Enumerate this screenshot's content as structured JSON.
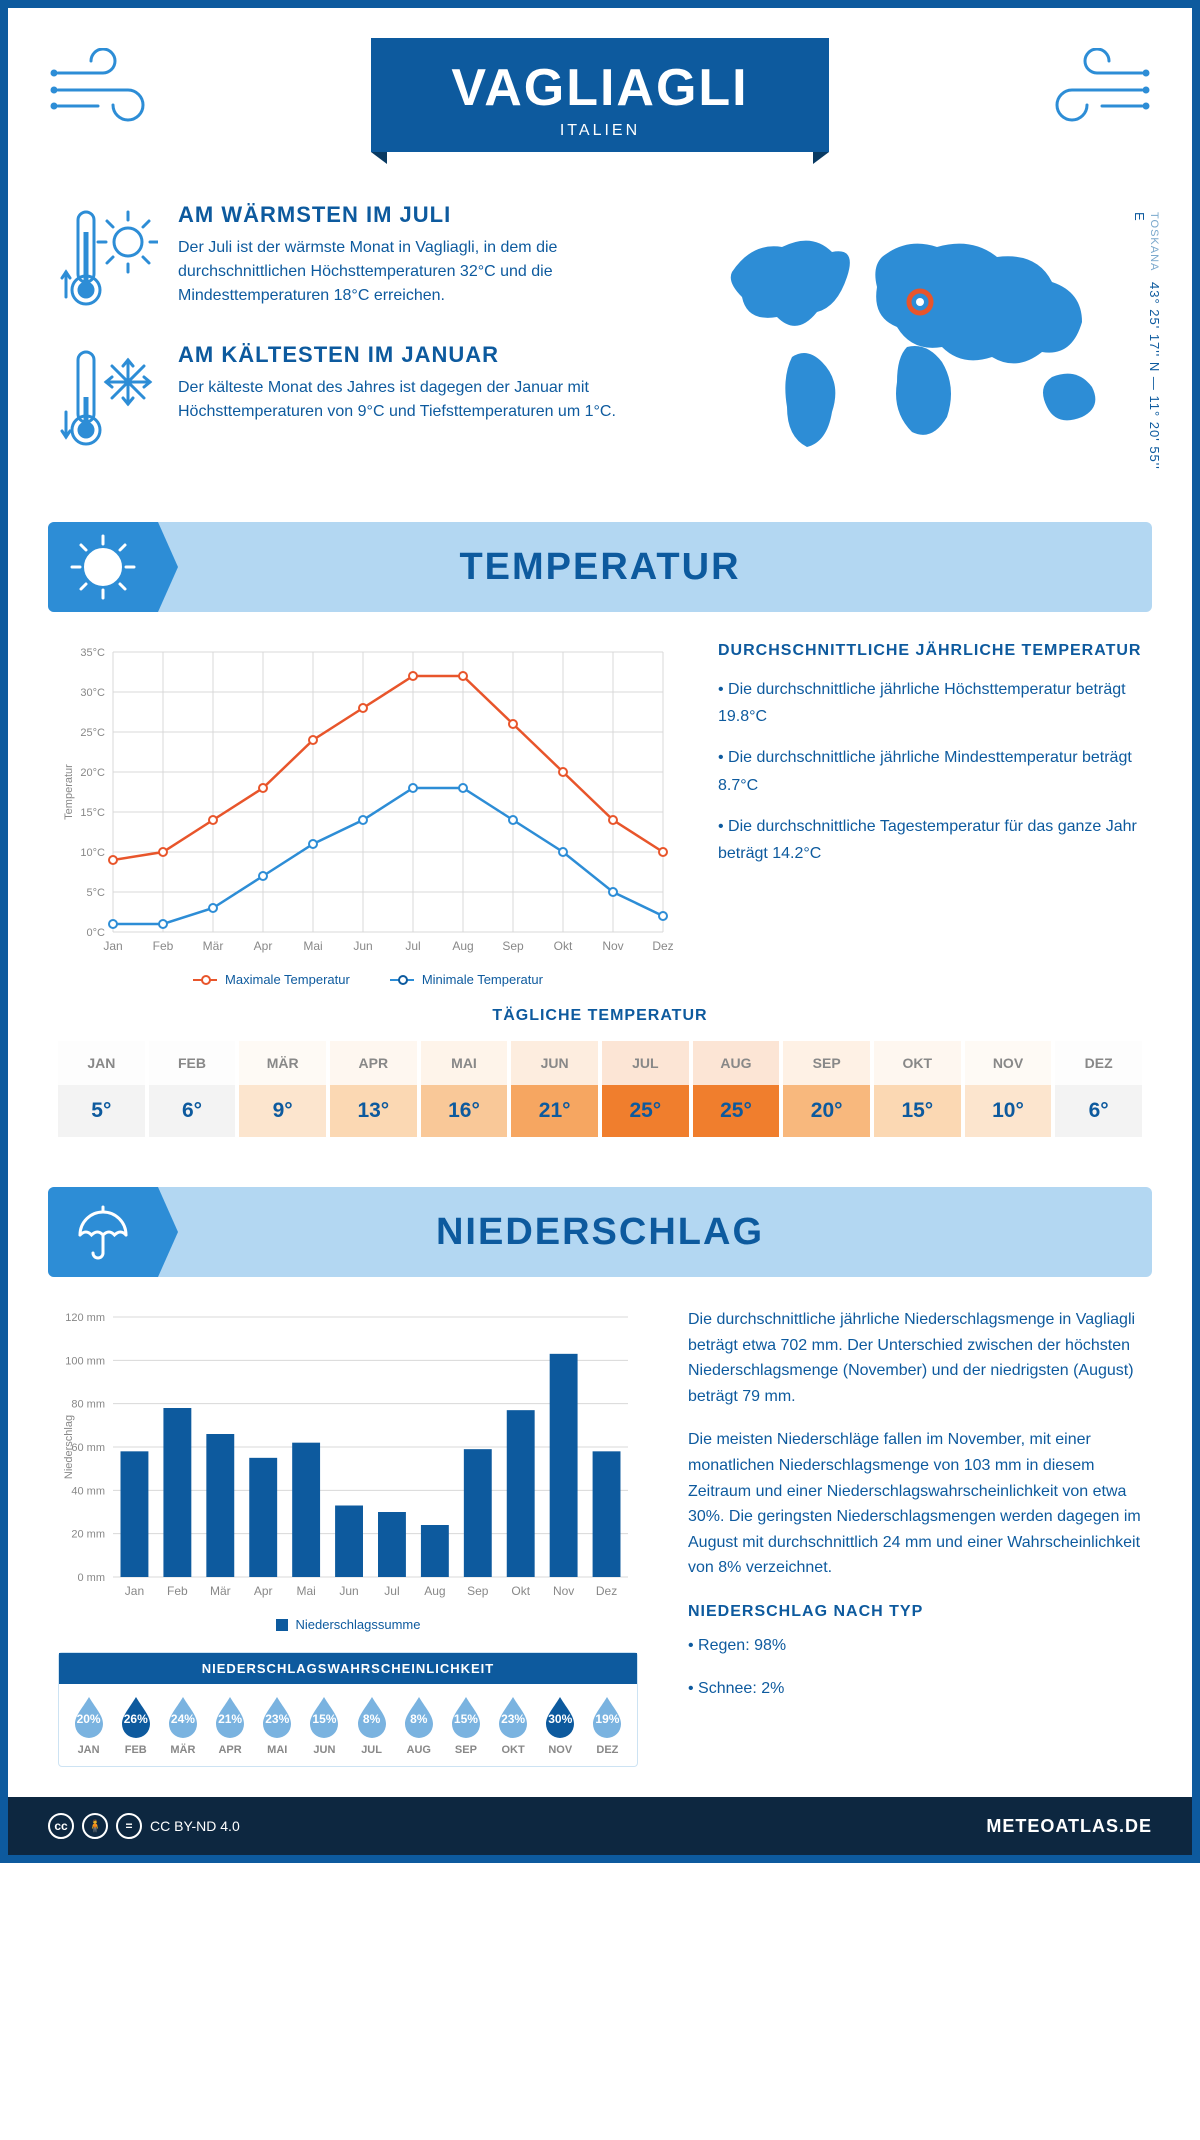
{
  "header": {
    "title": "VAGLIAGLI",
    "country": "ITALIEN"
  },
  "location": {
    "region": "TOSKANA",
    "coords": "43° 25' 17'' N — 11° 20' 55'' E"
  },
  "facts": {
    "warm": {
      "title": "AM WÄRMSTEN IM JULI",
      "text": "Der Juli ist der wärmste Monat in Vagliagli, in dem die durchschnittlichen Höchsttemperaturen 32°C und die Mindesttemperaturen 18°C erreichen."
    },
    "cold": {
      "title": "AM KÄLTESTEN IM JANUAR",
      "text": "Der kälteste Monat des Jahres ist dagegen der Januar mit Höchsttemperaturen von 9°C und Tiefsttemperaturen um 1°C."
    }
  },
  "sections": {
    "temp": "TEMPERATUR",
    "precip": "NIEDERSCHLAG"
  },
  "temp_chart": {
    "months": [
      "Jan",
      "Feb",
      "Mär",
      "Apr",
      "Mai",
      "Jun",
      "Jul",
      "Aug",
      "Sep",
      "Okt",
      "Nov",
      "Dez"
    ],
    "max": [
      9,
      10,
      14,
      18,
      24,
      28,
      32,
      32,
      26,
      20,
      14,
      10
    ],
    "min": [
      1,
      1,
      3,
      7,
      11,
      14,
      18,
      18,
      14,
      10,
      5,
      2
    ],
    "ylabel": "Temperatur",
    "ylim": [
      0,
      35
    ],
    "ytick_step": 5,
    "max_color": "#e8552b",
    "min_color": "#2d8dd6",
    "grid_color": "#d8d8d8",
    "legend_max": "Maximale Temperatur",
    "legend_min": "Minimale Temperatur"
  },
  "temp_summary": {
    "title": "DURCHSCHNITTLICHE JÄHRLICHE TEMPERATUR",
    "p1": "• Die durchschnittliche jährliche Höchsttemperatur beträgt 19.8°C",
    "p2": "• Die durchschnittliche jährliche Mindesttemperatur beträgt 8.7°C",
    "p3": "• Die durchschnittliche Tagestemperatur für das ganze Jahr beträgt 14.2°C"
  },
  "daily_temp": {
    "title": "TÄGLICHE TEMPERATUR",
    "months": [
      "JAN",
      "FEB",
      "MÄR",
      "APR",
      "MAI",
      "JUN",
      "JUL",
      "AUG",
      "SEP",
      "OKT",
      "NOV",
      "DEZ"
    ],
    "values": [
      "5°",
      "6°",
      "9°",
      "13°",
      "16°",
      "21°",
      "25°",
      "25°",
      "20°",
      "15°",
      "10°",
      "6°"
    ],
    "colors": [
      "#f3f3f3",
      "#f3f3f3",
      "#fce5ce",
      "#fbd8b3",
      "#f9c898",
      "#f6a661",
      "#f07e2d",
      "#f07e2d",
      "#f8b87d",
      "#fbd8b3",
      "#fce5ce",
      "#f3f3f3"
    ]
  },
  "precip_chart": {
    "months": [
      "Jan",
      "Feb",
      "Mär",
      "Apr",
      "Mai",
      "Jun",
      "Jul",
      "Aug",
      "Sep",
      "Okt",
      "Nov",
      "Dez"
    ],
    "values": [
      58,
      78,
      66,
      55,
      62,
      33,
      30,
      24,
      59,
      77,
      103,
      58
    ],
    "ylabel": "Niederschlag",
    "ylim": [
      0,
      120
    ],
    "ytick_step": 20,
    "bar_color": "#0d5a9e",
    "grid_color": "#d8d8d8",
    "legend": "Niederschlagssumme"
  },
  "precip_text": {
    "p1": "Die durchschnittliche jährliche Niederschlagsmenge in Vagliagli beträgt etwa 702 mm. Der Unterschied zwischen der höchsten Niederschlagsmenge (November) und der niedrigsten (August) beträgt 79 mm.",
    "p2": "Die meisten Niederschläge fallen im November, mit einer monatlichen Niederschlagsmenge von 103 mm in diesem Zeitraum und einer Niederschlagswahrscheinlichkeit von etwa 30%. Die geringsten Niederschlagsmengen werden dagegen im August mit durchschnittlich 24 mm und einer Wahrscheinlichkeit von 8% verzeichnet.",
    "type_title": "NIEDERSCHLAG NACH TYP",
    "type_1": "• Regen: 98%",
    "type_2": "• Schnee: 2%"
  },
  "precip_prob": {
    "title": "NIEDERSCHLAGSWAHRSCHEINLICHKEIT",
    "months": [
      "JAN",
      "FEB",
      "MÄR",
      "APR",
      "MAI",
      "JUN",
      "JUL",
      "AUG",
      "SEP",
      "OKT",
      "NOV",
      "DEZ"
    ],
    "values": [
      "20%",
      "26%",
      "24%",
      "21%",
      "23%",
      "15%",
      "8%",
      "8%",
      "15%",
      "23%",
      "30%",
      "19%"
    ],
    "raw": [
      20,
      26,
      24,
      21,
      23,
      15,
      8,
      8,
      15,
      23,
      30,
      19
    ],
    "color_light": "#7ab3e0",
    "color_dark": "#0d5a9e"
  },
  "footer": {
    "license": "CC BY-ND 4.0",
    "brand": "METEOATLAS.DE"
  }
}
